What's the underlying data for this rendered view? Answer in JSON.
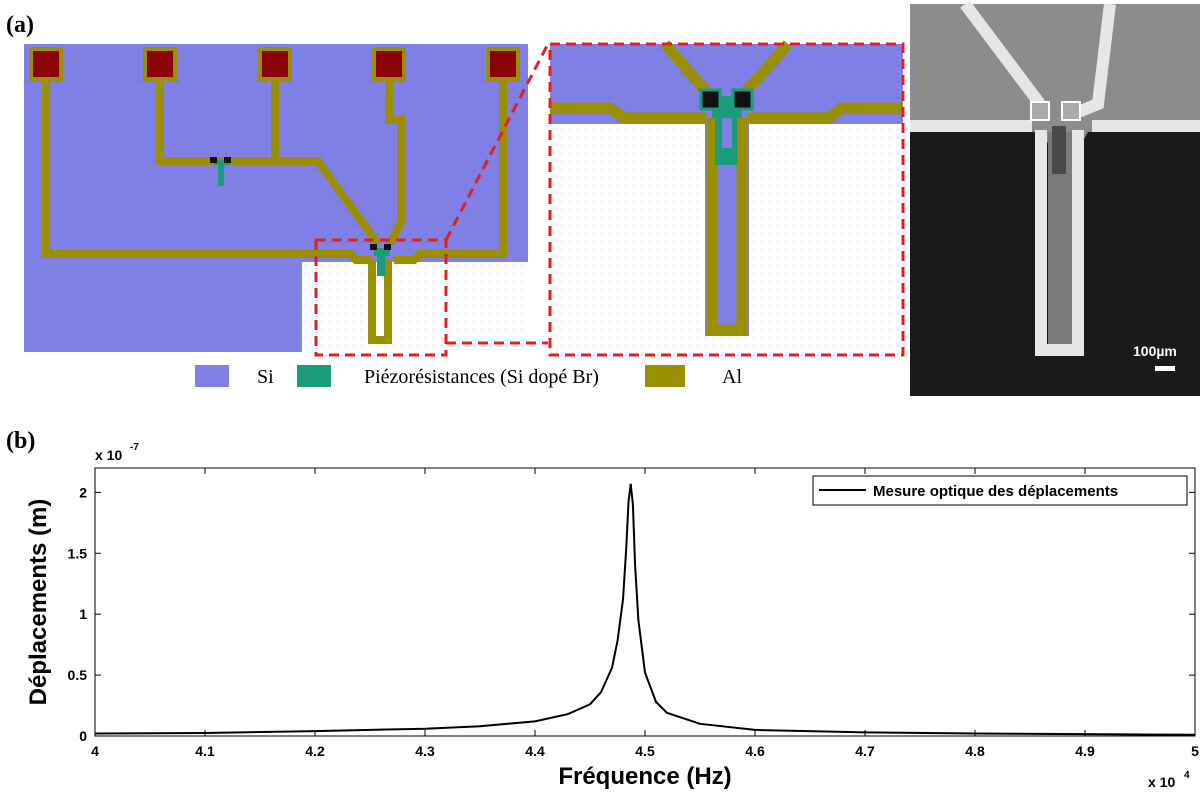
{
  "panel_a": {
    "label": "(a)",
    "legend": {
      "si": "Si",
      "piezo": "Piézorésistances (Si dopé Br)",
      "al": "Al"
    },
    "scale_bar": "100µm",
    "colors": {
      "si": "#8080e6",
      "piezo": "#1a9c7a",
      "al": "#9a8f00",
      "pad": "#8b0000",
      "zoom_box": "#e02020"
    }
  },
  "panel_b": {
    "label": "(b)"
  },
  "chart_data": {
    "type": "line",
    "title": "",
    "xlabel": "Fréquence (Hz)",
    "ylabel": "Déplacements (m)",
    "x_multiplier": "x 10",
    "x_multiplier_exp": "4",
    "y_multiplier": "x 10",
    "y_multiplier_exp": "-7",
    "xlim": [
      4.0,
      5.0
    ],
    "ylim": [
      0,
      2.2
    ],
    "xticks": [
      4,
      4.1,
      4.2,
      4.3,
      4.4,
      4.5,
      4.6,
      4.7,
      4.8,
      4.9,
      5
    ],
    "xtick_labels": [
      "4",
      "4.1",
      "4.2",
      "4.3",
      "4.4",
      "4.5",
      "4.6",
      "4.7",
      "4.8",
      "4.9",
      "5"
    ],
    "yticks": [
      0,
      0.5,
      1,
      1.5,
      2
    ],
    "ytick_labels": [
      "0",
      "0.5",
      "1",
      "1.5",
      "2"
    ],
    "legend_position": "top-right",
    "grid": false,
    "series": [
      {
        "name": "Mesure optique des déplacements",
        "color": "#000000",
        "x": [
          4.0,
          4.1,
          4.2,
          4.3,
          4.35,
          4.4,
          4.43,
          4.45,
          4.46,
          4.47,
          4.475,
          4.48,
          4.483,
          4.485,
          4.487,
          4.489,
          4.491,
          4.494,
          4.5,
          4.51,
          4.52,
          4.55,
          4.6,
          4.7,
          4.8,
          4.9,
          5.0
        ],
        "y": [
          0.02,
          0.025,
          0.04,
          0.06,
          0.08,
          0.12,
          0.18,
          0.26,
          0.36,
          0.56,
          0.78,
          1.12,
          1.55,
          1.92,
          2.07,
          1.9,
          1.4,
          0.95,
          0.52,
          0.28,
          0.19,
          0.1,
          0.05,
          0.03,
          0.02,
          0.015,
          0.01
        ]
      }
    ]
  }
}
